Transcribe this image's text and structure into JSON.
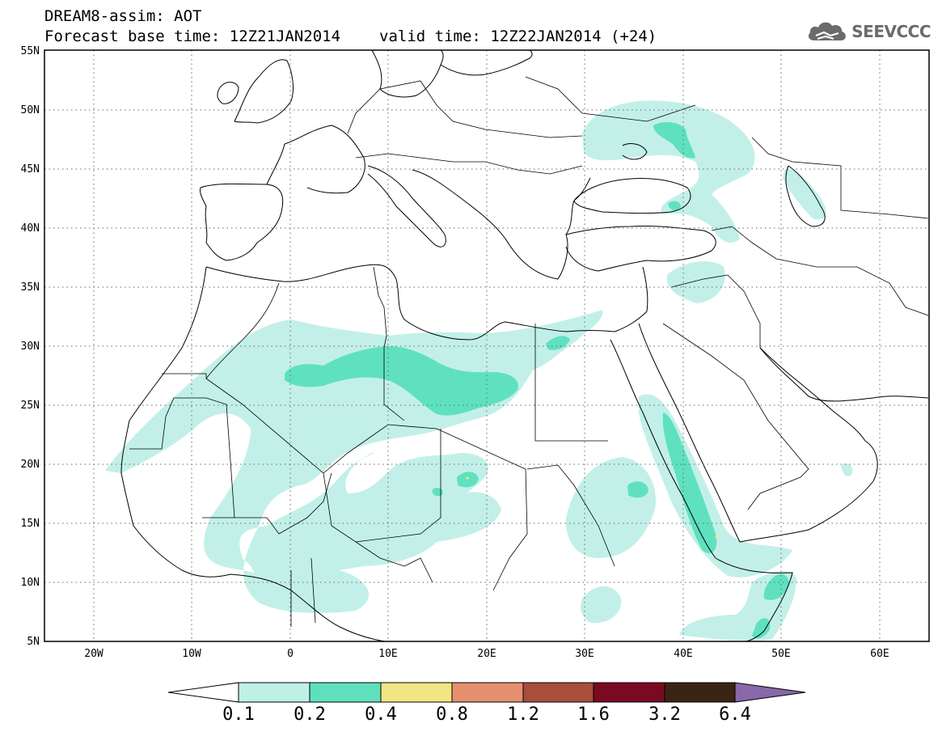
{
  "header": {
    "title": "DREAM8-assim: AOT",
    "base_time": "Forecast base time: 12Z21JAN2014",
    "valid_time": "valid time: 12Z22JAN2014 (+24)"
  },
  "logo": {
    "text": "SEEVCCC",
    "icon": "cloud-icon"
  },
  "map": {
    "lon_range": [
      -25,
      65
    ],
    "lat_range": [
      5,
      55
    ],
    "lat_ticks": [
      "5N",
      "10N",
      "15N",
      "20N",
      "25N",
      "30N",
      "35N",
      "40N",
      "45N",
      "50N",
      "55N"
    ],
    "lon_ticks": [
      "20W",
      "10W",
      "0",
      "10E",
      "20E",
      "30E",
      "40E",
      "50E",
      "60E"
    ],
    "grid": "dotted"
  },
  "colorbar": {
    "labels": [
      "0.1",
      "0.2",
      "0.4",
      "0.8",
      "1.2",
      "1.6",
      "3.2",
      "6.4"
    ],
    "colors": [
      "#bff0e6",
      "#5ee0be",
      "#f2e682",
      "#e69070",
      "#a84e3c",
      "#7a0a22",
      "#3b2414",
      "#8868a8"
    ],
    "under_color": "#ffffff",
    "over_color": "#8868a8"
  },
  "colors": {
    "aot_low": "#c2f0e8",
    "aot_mid": "#5fe1c0",
    "aot_high": "#f2e682"
  }
}
